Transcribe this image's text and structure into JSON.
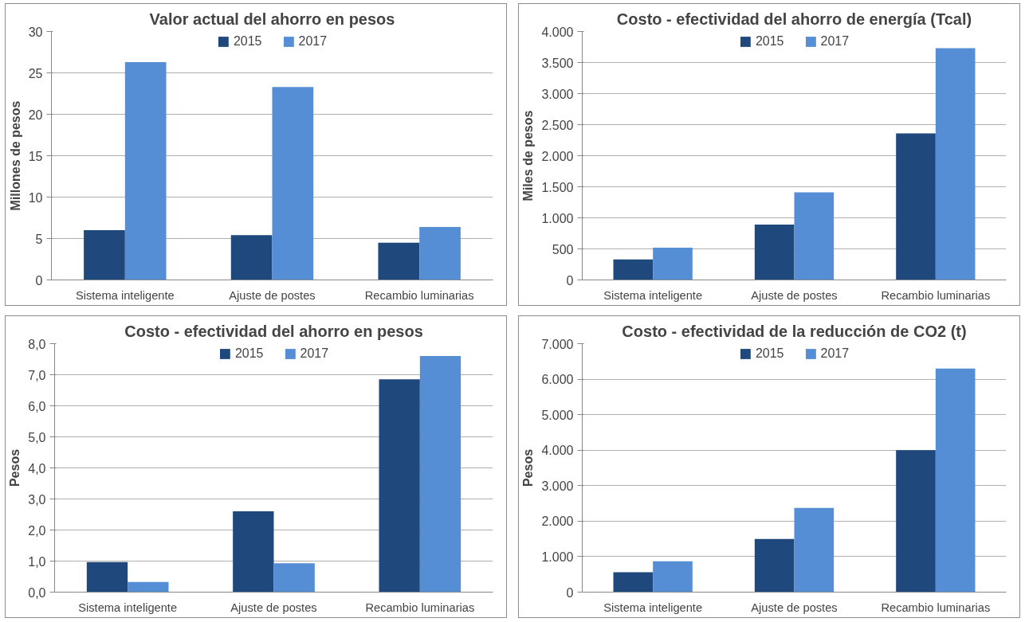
{
  "chart_data": [
    {
      "type": "bar",
      "title": "Valor actual del ahorro en pesos",
      "ylabel": "Millones de pesos",
      "categories": [
        "Sistema inteligente",
        "Ajuste de postes",
        "Recambio luminarias"
      ],
      "series": [
        {
          "name": "2015",
          "color": "#1f497d",
          "values": [
            6.0,
            5.4,
            4.5
          ]
        },
        {
          "name": "2017",
          "color": "#558ed5",
          "values": [
            26.3,
            23.3,
            6.4
          ]
        }
      ],
      "ylim": [
        0,
        30
      ],
      "yticks": [
        0,
        5,
        10,
        15,
        20,
        25,
        30
      ],
      "grid": "y",
      "legend": "top"
    },
    {
      "type": "bar",
      "title": "Costo - efectividad del ahorro de energía (Tcal)",
      "ylabel": "Miles de pesos",
      "categories": [
        "Sistema inteligente",
        "Ajuste de postes",
        "Recambio luminarias"
      ],
      "series": [
        {
          "name": "2015",
          "color": "#1f497d",
          "values": [
            330,
            890,
            2360
          ]
        },
        {
          "name": "2017",
          "color": "#558ed5",
          "values": [
            520,
            1410,
            3730
          ]
        }
      ],
      "ylim": [
        0,
        4000
      ],
      "yticks": [
        0,
        500,
        {
          "value": 1000,
          "label": "1.000"
        },
        {
          "value": 1500,
          "label": "1.500"
        },
        {
          "value": 2000,
          "label": "2.000"
        },
        {
          "value": 2500,
          "label": "2.500"
        },
        {
          "value": 3000,
          "label": "3.000"
        },
        {
          "value": 3500,
          "label": "3.500"
        },
        {
          "value": 4000,
          "label": "4.000"
        }
      ],
      "grid": "y",
      "legend": "top"
    },
    {
      "type": "bar",
      "title": "Costo - efectividad del ahorro en pesos",
      "ylabel": "Pesos",
      "categories": [
        "Sistema inteligente",
        "Ajuste de postes",
        "Recambio luminarias"
      ],
      "series": [
        {
          "name": "2015",
          "color": "#1f497d",
          "values": [
            0.97,
            2.6,
            6.85
          ]
        },
        {
          "name": "2017",
          "color": "#558ed5",
          "values": [
            0.33,
            0.93,
            7.6
          ]
        }
      ],
      "ylim": [
        0,
        8
      ],
      "yticks": [
        {
          "value": 0,
          "label": "0,0"
        },
        {
          "value": 1,
          "label": "1,0"
        },
        {
          "value": 2,
          "label": "2,0"
        },
        {
          "value": 3,
          "label": "3,0"
        },
        {
          "value": 4,
          "label": "4,0"
        },
        {
          "value": 5,
          "label": "5,0"
        },
        {
          "value": 6,
          "label": "6,0"
        },
        {
          "value": 7,
          "label": "7,0"
        },
        {
          "value": 8,
          "label": "8,0"
        }
      ],
      "grid": "y",
      "legend": "top"
    },
    {
      "type": "bar",
      "title": "Costo - efectividad de la reducción de CO2 (t)",
      "ylabel": "Pesos",
      "categories": [
        "Sistema inteligente",
        "Ajuste de postes",
        "Recambio luminarias"
      ],
      "series": [
        {
          "name": "2015",
          "color": "#1f497d",
          "values": [
            560,
            1500,
            4000
          ]
        },
        {
          "name": "2017",
          "color": "#558ed5",
          "values": [
            870,
            2370,
            6300
          ]
        }
      ],
      "ylim": [
        0,
        7000
      ],
      "yticks": [
        0,
        {
          "value": 1000,
          "label": "1.000"
        },
        {
          "value": 2000,
          "label": "2.000"
        },
        {
          "value": 3000,
          "label": "3.000"
        },
        {
          "value": 4000,
          "label": "4.000"
        },
        {
          "value": 5000,
          "label": "5.000"
        },
        {
          "value": 6000,
          "label": "6.000"
        },
        {
          "value": 7000,
          "label": "7.000"
        }
      ],
      "grid": "y",
      "legend": "top"
    }
  ]
}
